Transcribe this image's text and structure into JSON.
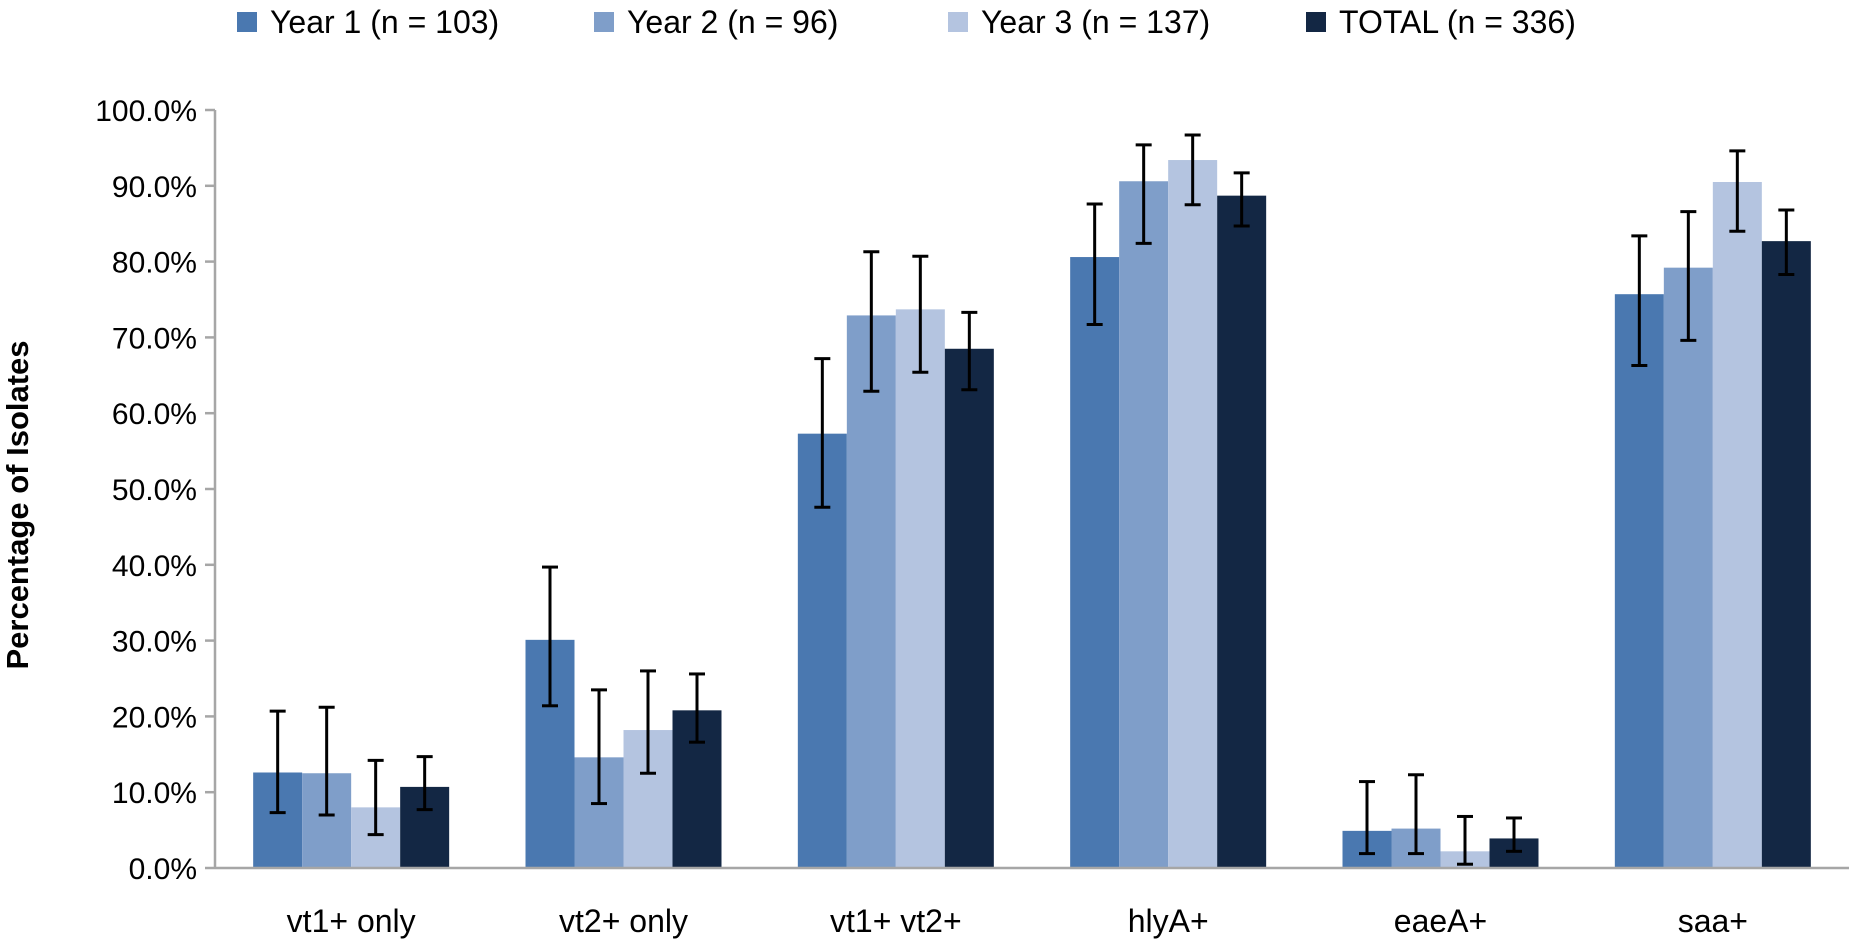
{
  "chart_data": {
    "type": "bar",
    "title": "",
    "xlabel": "",
    "ylabel": "Percentage of Isolates",
    "ylim": [
      0,
      100
    ],
    "y_ticks": [
      "0.0%",
      "10.0%",
      "20.0%",
      "30.0%",
      "40.0%",
      "50.0%",
      "60.0%",
      "70.0%",
      "80.0%",
      "90.0%",
      "100.0%"
    ],
    "legend_position": "top",
    "grid": false,
    "categories": [
      "vt1+ only",
      "vt2+ only",
      "vt1+ vt2+",
      "hlyA+",
      "eaeA+",
      "saa+"
    ],
    "series": [
      {
        "name": "Year 1 (n = 103)",
        "color": "#4a78b0",
        "values": [
          12.6,
          30.1,
          57.3,
          80.6,
          4.9,
          75.7
        ],
        "err_low": [
          7.3,
          21.4,
          47.6,
          71.7,
          1.9,
          66.3
        ],
        "err_high": [
          20.7,
          39.7,
          67.2,
          87.6,
          11.4,
          83.4
        ]
      },
      {
        "name": "Year 2 (n = 96)",
        "color": "#7f9ec9",
        "values": [
          12.5,
          14.6,
          72.9,
          90.6,
          5.2,
          79.2
        ],
        "err_low": [
          7.0,
          8.5,
          62.9,
          82.4,
          1.9,
          69.6
        ],
        "err_high": [
          21.2,
          23.5,
          81.3,
          95.4,
          12.3,
          86.6
        ]
      },
      {
        "name": "Year 3 (n = 137)",
        "color": "#b4c4e0",
        "values": [
          8.0,
          18.2,
          73.7,
          93.4,
          2.2,
          90.5
        ],
        "err_low": [
          4.4,
          12.5,
          65.4,
          87.5,
          0.5,
          84.0
        ],
        "err_high": [
          14.2,
          26.0,
          80.7,
          96.7,
          6.8,
          94.6
        ]
      },
      {
        "name": "TOTAL (n = 336)",
        "color": "#132744",
        "values": [
          10.7,
          20.8,
          68.5,
          88.7,
          3.9,
          82.7
        ],
        "err_low": [
          7.7,
          16.6,
          63.1,
          84.7,
          2.2,
          78.3
        ],
        "err_high": [
          14.7,
          25.6,
          73.3,
          91.7,
          6.6,
          86.8
        ]
      }
    ]
  }
}
